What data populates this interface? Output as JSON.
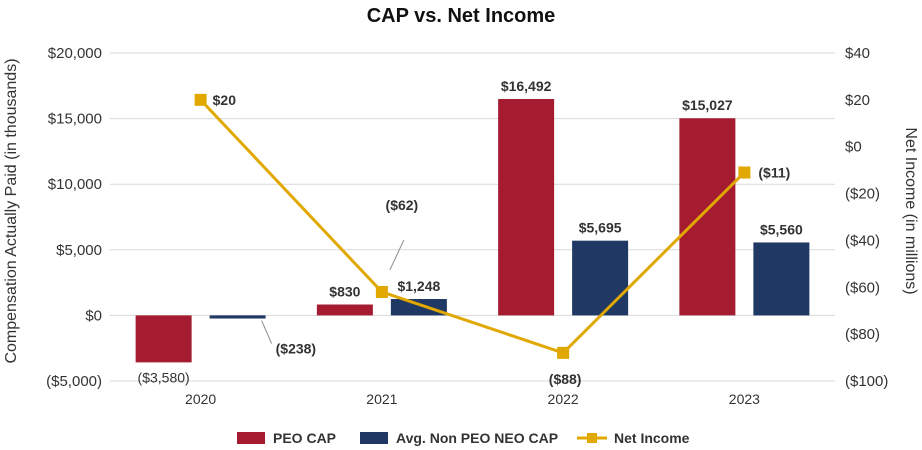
{
  "chart_data": {
    "type": "bar",
    "title": "CAP vs. Net Income",
    "categories": [
      "2020",
      "2021",
      "2022",
      "2023"
    ],
    "ylabel": "Compensation Actually Paid (in thousands)",
    "ylabel_right": "Net Income (in millions)",
    "ylim": [
      -5000,
      20000
    ],
    "ylim_right": [
      -100,
      40
    ],
    "yticks": [
      -5000,
      0,
      5000,
      10000,
      15000,
      20000
    ],
    "yticks_labels": [
      "($5,000)",
      "$0",
      "$5,000",
      "$10,000",
      "$15,000",
      "$20,000"
    ],
    "yticks_right": [
      -100,
      -80,
      -60,
      -40,
      -20,
      0,
      20,
      40
    ],
    "yticks_right_labels": [
      "($100)",
      "($80)",
      "($60)",
      "($40)",
      "($20)",
      "$0",
      "$20",
      "$40"
    ],
    "grid": true,
    "legend_position": "bottom",
    "series": [
      {
        "name": "PEO CAP",
        "kind": "bar",
        "axis": "left",
        "color": "#A51C30",
        "values": [
          -3580,
          830,
          16492,
          15027
        ],
        "labels": [
          "($3,580)",
          "$830",
          "$16,492",
          "$15,027"
        ]
      },
      {
        "name": "Avg. Non PEO NEO CAP",
        "kind": "bar",
        "axis": "left",
        "color": "#1F3864",
        "values": [
          -238,
          1248,
          5695,
          5560
        ],
        "labels": [
          "($238)",
          "$1,248",
          "$5,695",
          "$5,560"
        ]
      },
      {
        "name": "Net Income",
        "kind": "line",
        "axis": "right",
        "color": "#E0A800",
        "values": [
          20,
          -62,
          -88,
          -11
        ],
        "labels": [
          "$20",
          "($62)",
          "($88)",
          "($11)"
        ]
      }
    ]
  }
}
